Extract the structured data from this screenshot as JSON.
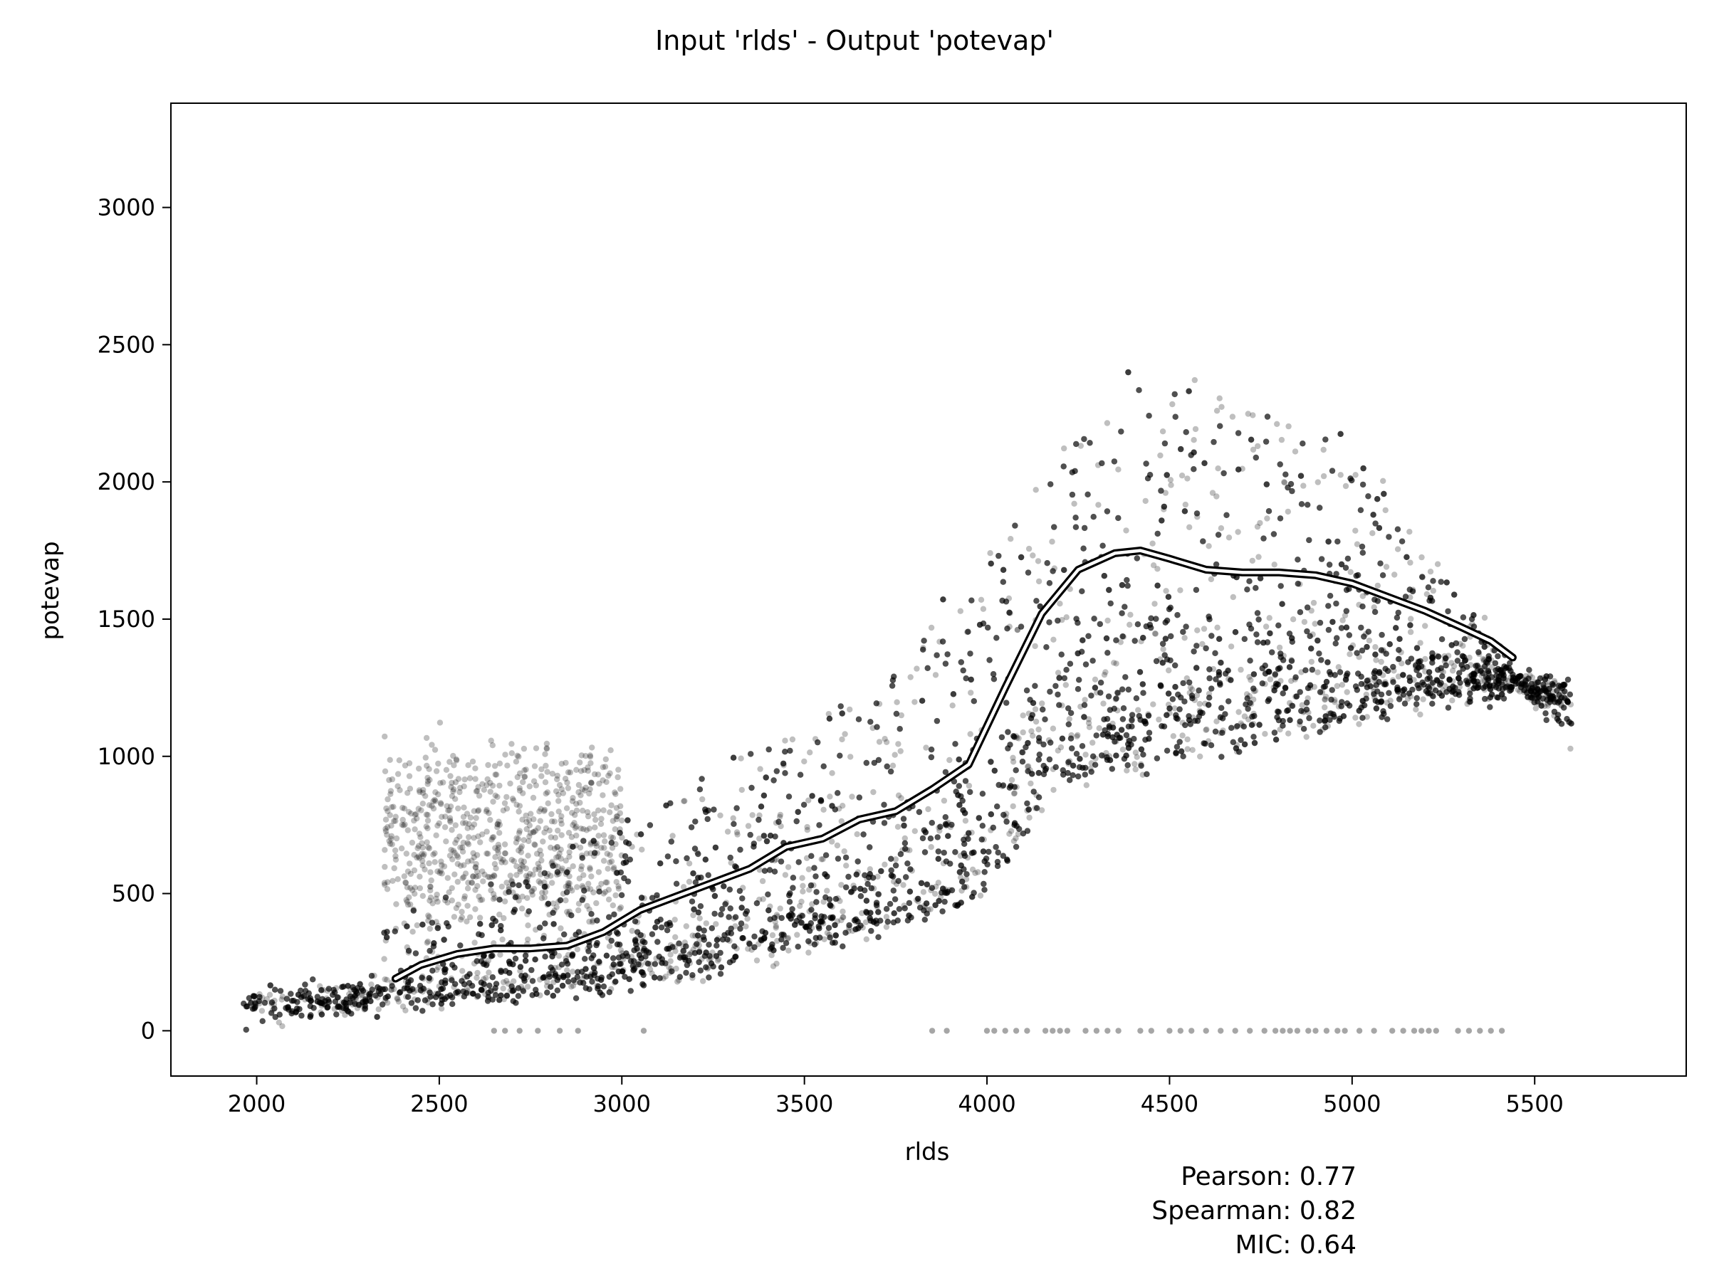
{
  "chart_data": {
    "type": "scatter",
    "title": "Input 'rlds' - Output 'potevap'",
    "xlabel": "rlds",
    "ylabel": "potevap",
    "xlim": [
      1765,
      5915
    ],
    "ylim": [
      -165,
      3380
    ],
    "xticks": [
      2000,
      2500,
      3000,
      3500,
      4000,
      4500,
      5000,
      5500
    ],
    "yticks": [
      0,
      500,
      1000,
      1500,
      2000,
      2500,
      3000
    ],
    "grid": false,
    "point_color": "#000000",
    "point_alpha": 0.25,
    "trend_line": {
      "x": [
        2380,
        2450,
        2550,
        2650,
        2750,
        2850,
        2950,
        3050,
        3150,
        3250,
        3350,
        3450,
        3550,
        3650,
        3750,
        3850,
        3950,
        4050,
        4150,
        4250,
        4350,
        4420,
        4500,
        4600,
        4700,
        4800,
        4900,
        5000,
        5100,
        5200,
        5300,
        5380,
        5440
      ],
      "y": [
        190,
        240,
        280,
        300,
        300,
        310,
        360,
        440,
        490,
        540,
        590,
        670,
        700,
        770,
        800,
        880,
        970,
        1250,
        1520,
        1680,
        1740,
        1750,
        1720,
        1680,
        1670,
        1670,
        1660,
        1630,
        1580,
        1530,
        1470,
        1420,
        1360
      ]
    },
    "zero_line_points_x": [
      2650,
      2680,
      2720,
      2770,
      2830,
      2880,
      3060,
      3850,
      3890,
      4000,
      4020,
      4050,
      4080,
      4110,
      4160,
      4180,
      4200,
      4220,
      4270,
      4300,
      4330,
      4360,
      4420,
      4450,
      4500,
      4530,
      4560,
      4600,
      4640,
      4680,
      4720,
      4760,
      4790,
      4810,
      4830,
      4850,
      4880,
      4900,
      4930,
      4960,
      4980,
      5020,
      5060,
      5110,
      5140,
      5170,
      5190,
      5210,
      5230,
      5290,
      5320,
      5350,
      5380,
      5410
    ]
  },
  "stats": {
    "pearson": "Pearson: 0.77",
    "spearman": "Spearman: 0.82",
    "mic": "MIC: 0.64"
  }
}
